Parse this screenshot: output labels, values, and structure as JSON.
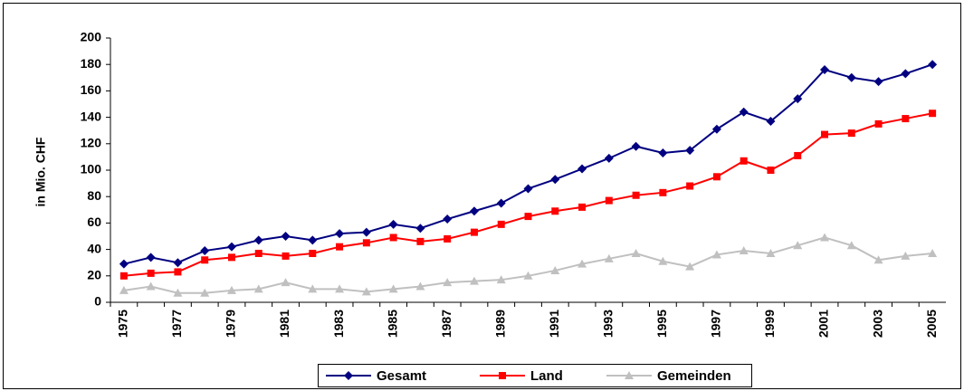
{
  "chart_data": {
    "type": "line",
    "ylabel": "in Mio. CHF",
    "categories": [
      "1975",
      null,
      "1977",
      null,
      "1979",
      null,
      "1981",
      null,
      "1983",
      null,
      "1985",
      null,
      "1987",
      null,
      "1989",
      null,
      "1991",
      null,
      "1993",
      null,
      "1995",
      null,
      "1997",
      null,
      "1999",
      null,
      "2001",
      null,
      "2003",
      null,
      "2005"
    ],
    "series": [
      {
        "name": "Gesamt",
        "color": "#000080",
        "marker": "diamond",
        "values": [
          29,
          34,
          30,
          39,
          42,
          47,
          50,
          47,
          52,
          53,
          59,
          56,
          63,
          69,
          75,
          86,
          93,
          101,
          109,
          118,
          113,
          115,
          131,
          144,
          137,
          154,
          176,
          170,
          167,
          173,
          180
        ]
      },
      {
        "name": "Land",
        "color": "#ff0000",
        "marker": "square",
        "values": [
          20,
          22,
          23,
          32,
          34,
          37,
          35,
          37,
          42,
          45,
          49,
          46,
          48,
          53,
          59,
          65,
          69,
          72,
          77,
          81,
          83,
          88,
          95,
          107,
          100,
          111,
          127,
          128,
          135,
          139,
          143
        ]
      },
      {
        "name": "Gemeinden",
        "color": "#c0c0c0",
        "marker": "triangle",
        "values": [
          9,
          12,
          7,
          7,
          9,
          10,
          15,
          10,
          10,
          8,
          10,
          12,
          15,
          16,
          17,
          20,
          24,
          29,
          33,
          37,
          31,
          27,
          36,
          39,
          37,
          43,
          49,
          43,
          32,
          35,
          37
        ]
      }
    ],
    "ylim": [
      0,
      200
    ],
    "yticks": [
      0,
      20,
      40,
      60,
      80,
      100,
      120,
      140,
      160,
      180,
      200
    ],
    "grid": false,
    "legend": "bottom"
  }
}
